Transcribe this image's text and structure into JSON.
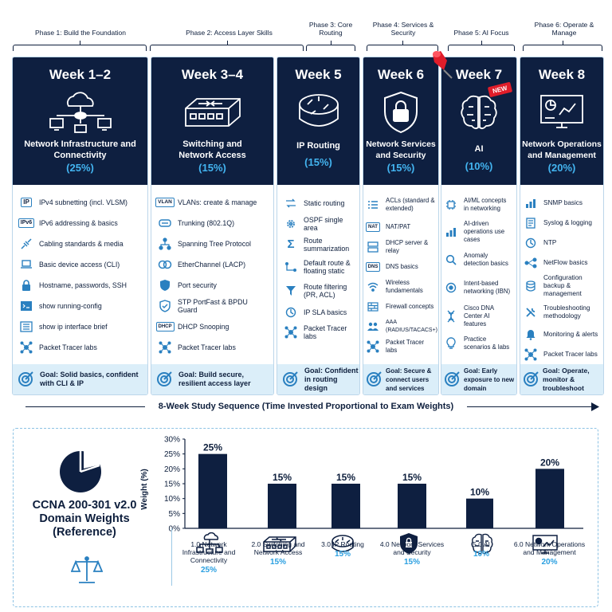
{
  "phases": [
    {
      "label": "Phase 1: Build the Foundation"
    },
    {
      "label": "Phase 2: Access Layer Skills"
    },
    {
      "label": "Phase 3: Core Routing"
    },
    {
      "label": "Phase 4: Services & Security"
    },
    {
      "label": "Phase 5: AI Focus"
    },
    {
      "label": "Phase 6: Operate & Manage"
    }
  ],
  "weeks": [
    {
      "week": "Week 1–2",
      "title": "Network Infrastructure and Connectivity",
      "pct": "(25%)",
      "items": [
        "IPv4 subnetting (incl. VLSM)",
        "IPv6 addressing & basics",
        "Cabling standards & media",
        "Basic device access (CLI)",
        "Hostname, passwords, SSH",
        "show running-config",
        "show ip interface brief",
        "Packet Tracer labs"
      ],
      "goal": "Goal: Solid basics, confident with CLI & IP"
    },
    {
      "week": "Week 3–4",
      "title": "Switching and Network Access",
      "pct": "(15%)",
      "items": [
        "VLANs: create & manage",
        "Trunking (802.1Q)",
        "Spanning Tree Protocol",
        "EtherChannel (LACP)",
        "Port security",
        "STP PortFast & BPDU Guard",
        "DHCP Snooping",
        "Packet Tracer labs"
      ],
      "goal": "Goal: Build secure, resilient access layer"
    },
    {
      "week": "Week 5",
      "title": "IP Routing",
      "pct": "(15%)",
      "items": [
        "Static routing",
        "OSPF single area",
        "Route summarization",
        "Default route & floating static",
        "Route filtering (PR, ACL)",
        "IP SLA basics",
        "Packet Tracer labs"
      ],
      "goal": "Goal: Confident in routing design"
    },
    {
      "week": "Week 6",
      "title": "Network Services and Security",
      "pct": "(15%)",
      "items": [
        "ACLs (standard & extended)",
        "NAT/PAT",
        "DHCP server & relay",
        "DNS basics",
        "Wireless fundamentals",
        "Firewall concepts",
        "AAA (RADIUS/TACACS+)",
        "Packet Tracer labs"
      ],
      "goal": "Goal: Secure & connect users and services"
    },
    {
      "week": "Week 7",
      "title": "AI",
      "pct": "(10%)",
      "badge": "NEW",
      "items": [
        "AI/ML concepts in networking",
        "AI-driven operations use cases",
        "Anomaly detection basics",
        "Intent-based networking (IBN)",
        "Cisco DNA Center AI features",
        "Practice scenarios & labs"
      ],
      "goal": "Goal: Early exposure to new domain"
    },
    {
      "week": "Week 8",
      "title": "Network Operations and Management",
      "pct": "(20%)",
      "items": [
        "SNMP basics",
        "Syslog & logging",
        "NTP",
        "NetFlow basics",
        "Configuration backup & management",
        "Troubleshooting methodology",
        "Monitoring & alerts",
        "Packet Tracer labs"
      ],
      "goal": "Goal: Operate, monitor & troubleshoot"
    }
  ],
  "item_tags": {
    "ipv4": "IP",
    "ipv6": "IPv6",
    "vlan": "VLAN",
    "dhcp": "DHCP",
    "nat": "NAT",
    "dns": "DNS"
  },
  "sequence_label": "8-Week Study Sequence (Time Invested Proportional to Exam Weights)",
  "reference_title": "CCNA 200-301 v2.0 Domain Weights (Reference)",
  "colors": {
    "navy": "#0e1f40",
    "accent": "#43b4f0",
    "light": "#dbeef9",
    "border": "#bcd6ea"
  },
  "chart_data": {
    "type": "bar",
    "categories": [
      "1.0 Network Infrastructure and Connectivity",
      "2.0 Switching and Network Access",
      "3.0 IP Routing",
      "4.0 Network Services and Security",
      "5.0 AI",
      "6.0 Network Operations and Management"
    ],
    "values": [
      25,
      15,
      15,
      15,
      10,
      20
    ],
    "data_labels": [
      "25%",
      "15%",
      "15%",
      "15%",
      "10%",
      "20%"
    ],
    "category_pct": [
      "25%",
      "15%",
      "15%",
      "15%",
      "10%",
      "20%"
    ],
    "ylabel": "Weight (%)",
    "yticks": [
      "0%",
      "5%",
      "10%",
      "15%",
      "20%",
      "25%",
      "30%"
    ],
    "ylim": [
      0,
      30
    ],
    "grid": false
  }
}
